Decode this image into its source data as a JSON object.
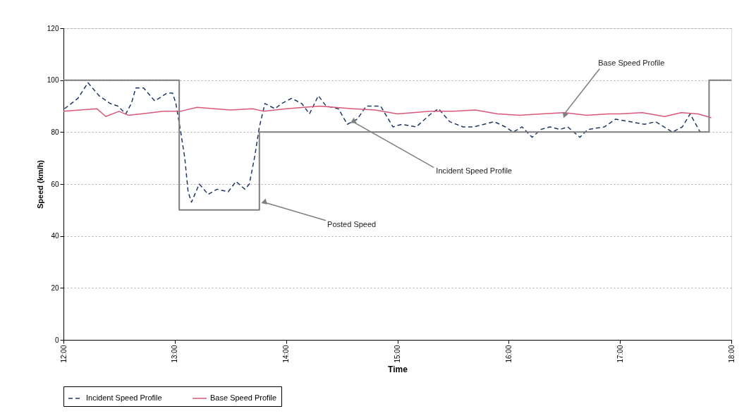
{
  "chart_data": {
    "type": "line",
    "xlabel": "Time",
    "ylabel": "Speed (km/h)",
    "xlim": [
      12,
      18
    ],
    "xticks": [
      {
        "value": 12,
        "label": "12:00"
      },
      {
        "value": 13,
        "label": "13:00"
      },
      {
        "value": 14,
        "label": "14:00"
      },
      {
        "value": 15,
        "label": "15:00"
      },
      {
        "value": 16,
        "label": "16:00"
      },
      {
        "value": 17,
        "label": "17:00"
      },
      {
        "value": 18,
        "label": "18:00"
      }
    ],
    "ylim": [
      0,
      120
    ],
    "yticks": [
      0,
      20,
      40,
      60,
      80,
      100,
      120
    ],
    "grid": "y",
    "legend": "bottom",
    "marker": "none",
    "series": [
      {
        "name": "Incident Speed Profile",
        "color": "#1f3864",
        "line_style": "dashed",
        "x": [
          12.01,
          12.13,
          12.22,
          12.32,
          12.42,
          12.49,
          12.56,
          12.61,
          12.65,
          12.72,
          12.82,
          12.93,
          12.98,
          13.01,
          13.05,
          13.09,
          13.12,
          13.15,
          13.22,
          13.3,
          13.38,
          13.48,
          13.55,
          13.63,
          13.67,
          13.72,
          13.76,
          13.81,
          13.9,
          13.96,
          14.05,
          14.14,
          14.21,
          14.29,
          14.36,
          14.47,
          14.55,
          14.64,
          14.72,
          14.85,
          14.96,
          15.04,
          15.17,
          15.3,
          15.37,
          15.47,
          15.59,
          15.69,
          15.87,
          15.97,
          16.04,
          16.12,
          16.21,
          16.29,
          16.37,
          16.46,
          16.53,
          16.64,
          16.71,
          16.86,
          16.96,
          17.09,
          17.22,
          17.32,
          17.47,
          17.56,
          17.63,
          17.72,
          17.78
        ],
        "values": [
          89,
          93,
          99,
          94,
          91,
          90,
          87,
          91,
          97,
          97,
          92,
          95,
          95,
          91,
          81,
          70,
          57,
          53,
          60,
          56,
          58,
          57,
          61,
          58,
          60,
          71,
          82,
          91,
          89,
          91,
          93,
          91,
          87,
          94,
          90,
          89,
          83,
          85,
          90,
          90,
          82,
          83,
          82,
          87,
          89,
          84,
          82,
          82,
          84,
          82,
          80,
          82,
          78,
          81,
          82,
          81,
          82,
          78,
          81,
          82,
          85,
          84,
          83,
          84,
          80,
          82,
          87,
          80,
          80
        ]
      },
      {
        "name": "Base Speed Profile",
        "color": "#d9587a",
        "line_style": "solid",
        "x": [
          12,
          12.15,
          12.3,
          12.38,
          12.5,
          12.58,
          12.7,
          12.9,
          13.05,
          13.2,
          13.5,
          13.7,
          13.8,
          14.0,
          14.3,
          14.6,
          14.8,
          15.0,
          15.3,
          15.5,
          15.7,
          15.9,
          16.1,
          16.3,
          16.5,
          16.7,
          16.9,
          17.0,
          17.2,
          17.4,
          17.55,
          17.7,
          17.82
        ],
        "values": [
          88,
          88.5,
          89,
          86,
          88,
          86.5,
          87,
          88,
          88,
          89.5,
          88.5,
          89,
          88,
          89,
          90,
          89,
          88.5,
          87,
          88,
          88,
          88.5,
          87,
          86.5,
          87,
          87.5,
          86.5,
          87,
          87,
          87.5,
          86,
          87.5,
          87,
          85.5
        ]
      },
      {
        "type": "step",
        "color": "#7f7f7f",
        "line_style": "solid",
        "x": [
          12,
          13.04,
          13.76,
          17.8,
          18
        ],
        "values": [
          100,
          50,
          80,
          100,
          100
        ]
      }
    ],
    "annotations": [
      {
        "text": "Base Speed Profile",
        "x": 16.5,
        "y": 87
      },
      {
        "text": "Incident  Speed Profile",
        "x": 14.6,
        "y": 84
      },
      {
        "text": "Posted Speed",
        "x": 13.8,
        "y": 53
      }
    ]
  }
}
